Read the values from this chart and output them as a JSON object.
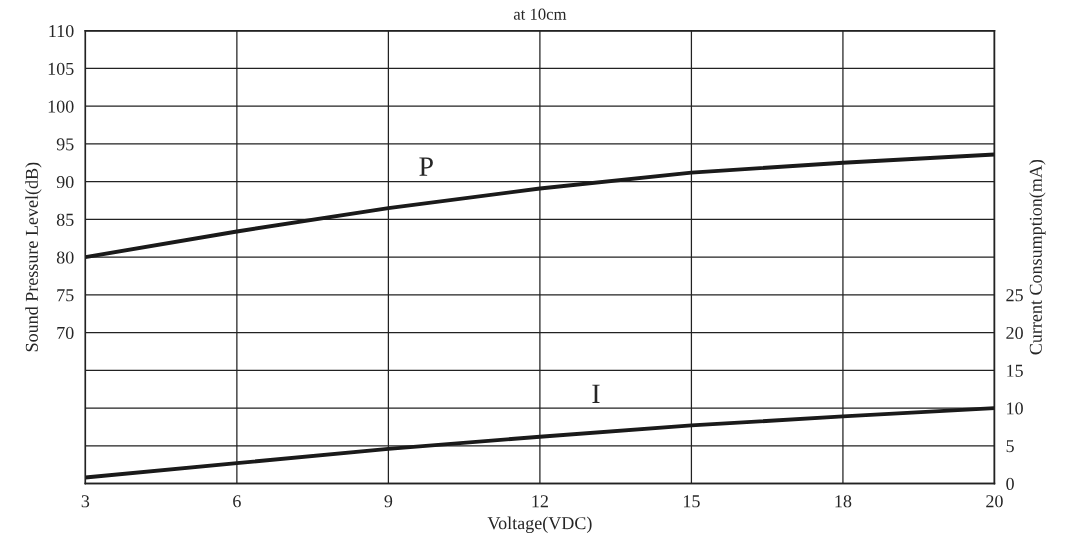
{
  "chart_data": {
    "type": "line",
    "title": "at 10cm",
    "xlabel": "Voltage(VDC)",
    "ylabel": "Sound Pressure Level(dB)",
    "y2label": "Current Consumption(mA)",
    "categories": [
      "3",
      "6",
      "9",
      "12",
      "15",
      "18",
      "20"
    ],
    "series": [
      {
        "name": "P",
        "color": "#1a1a1a",
        "values": [
          80.0,
          83.4,
          86.5,
          89.1,
          91.2,
          92.5,
          93.6
        ]
      },
      {
        "name": "I",
        "color": "#1a1a1a",
        "axis": "y2",
        "values": [
          0.8,
          2.7,
          4.6,
          6.2,
          7.7,
          8.9,
          10.0
        ]
      }
    ],
    "ylim": [
      50,
      110
    ],
    "yticks": [
      {
        "value": 50,
        "label": null
      },
      {
        "value": 55,
        "label": null
      },
      {
        "value": 60,
        "label": null
      },
      {
        "value": 65,
        "label": null
      },
      70,
      75,
      80,
      85,
      90,
      95,
      100,
      105,
      110
    ],
    "y2lim": [
      0,
      60
    ],
    "y2ticks": [
      0,
      5,
      10,
      15,
      20,
      25
    ],
    "grid": true,
    "legend": false,
    "marker": "none",
    "line_style": "solid"
  }
}
